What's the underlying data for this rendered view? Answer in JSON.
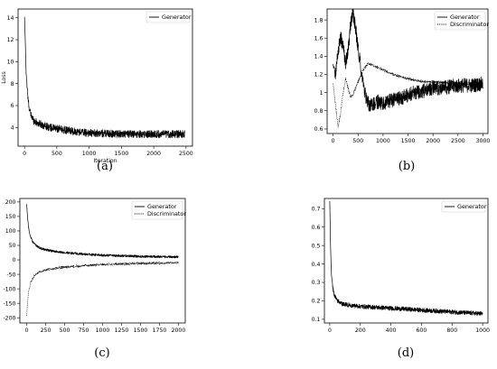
{
  "chart_data": [
    {
      "type": "line",
      "caption": "(a)",
      "xlabel": "Iteration",
      "ylabel": "Loss",
      "xlim": [
        -100,
        2600
      ],
      "ylim": [
        2.3,
        14.8
      ],
      "xticks": [
        0,
        500,
        1000,
        1500,
        2000,
        2500
      ],
      "yticks": [
        4,
        6,
        8,
        10,
        12,
        14
      ],
      "legend_position": "top-right",
      "series": [
        {
          "name": "Generator",
          "style": "solid",
          "color": "#000000",
          "x": [
            0,
            10,
            25,
            50,
            75,
            100,
            150,
            200,
            300,
            400,
            500,
            700,
            1000,
            1300,
            1600,
            2000,
            2300,
            2480
          ],
          "y": [
            14.0,
            12.2,
            9.0,
            6.8,
            5.7,
            5.1,
            4.6,
            4.4,
            4.2,
            4.0,
            3.9,
            3.7,
            3.5,
            3.45,
            3.4,
            3.4,
            3.4,
            3.4
          ],
          "noise": 0.35
        }
      ]
    },
    {
      "type": "line",
      "caption": "(b)",
      "xlabel": "",
      "ylabel": "",
      "xlim": [
        -120,
        3100
      ],
      "ylim": [
        0.55,
        1.92
      ],
      "xticks": [
        0,
        500,
        1000,
        1500,
        2000,
        2500,
        3000
      ],
      "yticks": [
        0.6,
        0.8,
        1.0,
        1.2,
        1.4,
        1.6,
        1.8
      ],
      "legend_position": "top-right",
      "series": [
        {
          "name": "Generator",
          "style": "solid",
          "color": "#000000",
          "x": [
            0,
            50,
            100,
            150,
            200,
            250,
            300,
            350,
            400,
            450,
            500,
            550,
            600,
            650,
            700,
            750,
            800,
            900,
            1000,
            1200,
            1400,
            1600,
            1800,
            2000,
            2200,
            2400,
            2600,
            2800,
            3000
          ],
          "y": [
            1.3,
            1.22,
            1.45,
            1.62,
            1.5,
            1.32,
            1.45,
            1.75,
            1.88,
            1.7,
            1.5,
            1.3,
            1.1,
            0.95,
            0.88,
            0.85,
            0.87,
            0.9,
            0.88,
            0.92,
            0.95,
            1.0,
            1.02,
            1.05,
            1.05,
            1.07,
            1.08,
            1.08,
            1.1
          ],
          "noise": 0.08
        },
        {
          "name": "Discriminator",
          "style": "dotted",
          "color": "#000000",
          "x": [
            0,
            50,
            100,
            150,
            200,
            250,
            300,
            350,
            400,
            450,
            500,
            600,
            700,
            800,
            1000,
            1200,
            1400,
            1600,
            1800,
            2000,
            2200,
            2400,
            2600,
            2800,
            3000
          ],
          "y": [
            1.1,
            0.85,
            0.62,
            0.78,
            1.0,
            1.15,
            1.05,
            0.95,
            0.98,
            1.05,
            1.12,
            1.25,
            1.32,
            1.3,
            1.25,
            1.2,
            1.17,
            1.14,
            1.12,
            1.12,
            1.11,
            1.11,
            1.1,
            1.1,
            1.1
          ],
          "noise": 0.015
        }
      ]
    },
    {
      "type": "line",
      "caption": "(c)",
      "xlabel": "",
      "ylabel": "",
      "xlim": [
        -90,
        2090
      ],
      "ylim": [
        -218,
        212
      ],
      "xticks": [
        0,
        250,
        500,
        750,
        1000,
        1250,
        1500,
        1750,
        2000
      ],
      "yticks": [
        -200,
        -150,
        -100,
        -50,
        0,
        50,
        100,
        150,
        200
      ],
      "legend_position": "top-right",
      "series": [
        {
          "name": "Generator",
          "style": "solid",
          "color": "#000000",
          "x": [
            0,
            10,
            25,
            50,
            75,
            100,
            150,
            200,
            300,
            400,
            500,
            750,
            1000,
            1250,
            1500,
            1750,
            2000
          ],
          "y": [
            192,
            150,
            110,
            80,
            65,
            55,
            45,
            38,
            32,
            28,
            25,
            20,
            16,
            14,
            12,
            11,
            10
          ],
          "noise": 4
        },
        {
          "name": "Discriminator",
          "style": "dotted",
          "color": "#000000",
          "x": [
            0,
            10,
            25,
            50,
            75,
            100,
            150,
            200,
            300,
            400,
            500,
            750,
            1000,
            1250,
            1500,
            1750,
            2000
          ],
          "y": [
            -192,
            -150,
            -110,
            -80,
            -65,
            -55,
            -45,
            -38,
            -32,
            -28,
            -25,
            -20,
            -16,
            -14,
            -12,
            -11,
            -10
          ],
          "noise": 4
        }
      ]
    },
    {
      "type": "line",
      "caption": "(d)",
      "xlabel": "",
      "ylabel": "",
      "xlim": [
        -35,
        1035
      ],
      "ylim": [
        0.08,
        0.755
      ],
      "xticks": [
        0,
        200,
        400,
        600,
        800,
        1000
      ],
      "yticks": [
        0.1,
        0.2,
        0.3,
        0.4,
        0.5,
        0.6,
        0.7
      ],
      "legend_position": "top-right",
      "series": [
        {
          "name": "Generator",
          "style": "solid",
          "color": "#000000",
          "x": [
            0,
            5,
            10,
            20,
            30,
            50,
            75,
            100,
            150,
            200,
            300,
            400,
            500,
            600,
            700,
            800,
            900,
            1000
          ],
          "y": [
            0.74,
            0.5,
            0.36,
            0.27,
            0.23,
            0.2,
            0.185,
            0.18,
            0.175,
            0.17,
            0.165,
            0.16,
            0.155,
            0.15,
            0.145,
            0.14,
            0.135,
            0.13
          ],
          "noise": 0.012
        }
      ]
    }
  ]
}
